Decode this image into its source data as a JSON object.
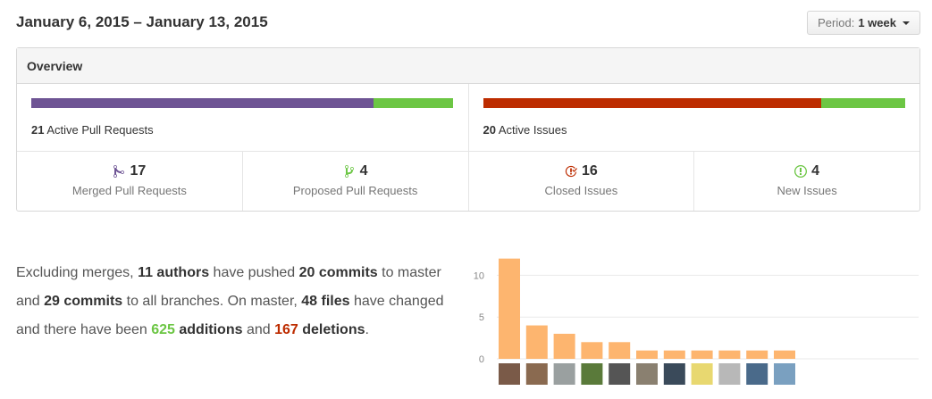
{
  "header": {
    "date_range": "January 6, 2015 – January 13, 2015",
    "period_label": "Period:",
    "period_value": "1 week"
  },
  "overview": {
    "title": "Overview",
    "pull_requests": {
      "count": "21",
      "label": "Active Pull Requests",
      "merged_fraction": 0.81,
      "color_merged": "#6e5494",
      "color_open": "#6cc644"
    },
    "issues": {
      "count": "20",
      "label": "Active Issues",
      "closed_fraction": 0.8,
      "color_closed": "#bd2c00",
      "color_new": "#6cc644"
    },
    "stats": [
      {
        "num": "17",
        "label": "Merged Pull Requests",
        "icon": "merge-icon",
        "color": "#6e5494"
      },
      {
        "num": "4",
        "label": "Proposed Pull Requests",
        "icon": "pull-request-icon",
        "color": "#6cc644"
      },
      {
        "num": "16",
        "label": "Closed Issues",
        "icon": "issue-closed-icon",
        "color": "#bd2c00"
      },
      {
        "num": "4",
        "label": "New Issues",
        "icon": "issue-opened-icon",
        "color": "#6cc644"
      }
    ]
  },
  "summary": {
    "t1": "Excluding merges, ",
    "authors": "11 authors",
    "t2": " have pushed ",
    "commits_master": "20 commits",
    "t3": " to master and ",
    "commits_all": "29 commits",
    "t4": " to all branches. On master, ",
    "files": "48 files",
    "t5": " have changed and there have been ",
    "additions_num": "625",
    "additions_word": " additions",
    "t6": " and ",
    "deletions_num": "167",
    "deletions_word": "deletions",
    "t7": "."
  },
  "chart_data": {
    "type": "bar",
    "values": [
      12,
      4,
      3,
      2,
      2,
      1,
      1,
      1,
      1,
      1,
      1
    ],
    "yticks": [
      0,
      5,
      10
    ],
    "ylim": [
      0,
      12.5
    ],
    "color": "#fdb56f",
    "avatar_colors": [
      "#7a5a48",
      "#8a6a50",
      "#9aa0a0",
      "#5a7a3a",
      "#555555",
      "#8a8070",
      "#3a4a5a",
      "#e8d870",
      "#b8b8b8",
      "#4a6a8a",
      "#7aa0c0"
    ]
  }
}
